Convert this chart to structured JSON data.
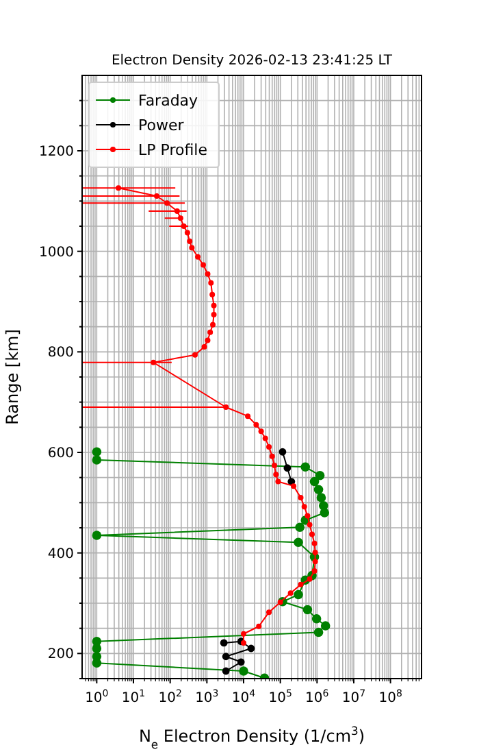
{
  "chart_data": {
    "type": "line",
    "title": "Electron Density 2026-02-13 23:41:25 LT",
    "xlabel": "N$_{e}$ Electron Density (1/cm$^{3}$)",
    "ylabel": "Range [km]",
    "log": "x",
    "grid": true,
    "legend": "top left",
    "marker": "circle",
    "line_style": "solid",
    "xlim": [
      0.4,
      700000000
    ],
    "ylim": [
      150,
      1350
    ],
    "xticks": [
      {
        "value": 1,
        "label": "10$^{0}$"
      },
      {
        "value": 10,
        "label": "10$^{1}$"
      },
      {
        "value": 100,
        "label": "10$^{2}$"
      },
      {
        "value": 1000,
        "label": "10$^{3}$"
      },
      {
        "value": 10000,
        "label": "10$^{4}$"
      },
      {
        "value": 100000,
        "label": "10$^{5}$"
      },
      {
        "value": 1000000,
        "label": "10$^{6}$"
      },
      {
        "value": 10000000,
        "label": "10$^{7}$"
      },
      {
        "value": 100000000,
        "label": "10$^{8}$"
      }
    ],
    "yticks": [
      {
        "value": 150,
        "label": null
      },
      200,
      {
        "value": 250,
        "label": null
      },
      {
        "value": 300,
        "label": null
      },
      {
        "value": 350,
        "label": null
      },
      400,
      {
        "value": 450,
        "label": null
      },
      {
        "value": 500,
        "label": null
      },
      {
        "value": 550,
        "label": null
      },
      600,
      {
        "value": 650,
        "label": null
      },
      {
        "value": 700,
        "label": null
      },
      {
        "value": 750,
        "label": null
      },
      800,
      {
        "value": 850,
        "label": null
      },
      {
        "value": 900,
        "label": null
      },
      {
        "value": 950,
        "label": null
      },
      1000,
      {
        "value": 1050,
        "label": null
      },
      {
        "value": 1100,
        "label": null
      },
      {
        "value": 1150,
        "label": null
      },
      1200,
      {
        "value": 1250,
        "label": null
      },
      {
        "value": 1300,
        "label": null
      }
    ],
    "series": [
      {
        "name": "Faraday",
        "color": "#008000",
        "x": [
          1,
          1,
          480000,
          1200000,
          850000,
          1100000,
          1300000,
          1500000,
          1600000,
          480000,
          340000,
          1,
          310000,
          850000,
          730000,
          480000,
          310000,
          115000,
          550000,
          970000,
          1700000,
          1100000,
          1,
          1,
          1,
          1,
          10000,
          37000
        ],
        "values": [
          601,
          585,
          571,
          554,
          542,
          526,
          510,
          494,
          480,
          465,
          451,
          435,
          421,
          392,
          355,
          346,
          317,
          303,
          287,
          269,
          255,
          242,
          224,
          210,
          194,
          181,
          165,
          151
        ]
      },
      {
        "name": "Power",
        "color": "#000000",
        "x": [
          115000,
          155000,
          200000,
          null,
          2900,
          8500,
          16000,
          3300,
          8500,
          3300
        ],
        "values": [
          601,
          569,
          542,
          null,
          221,
          224,
          210,
          194,
          183,
          165
        ]
      },
      {
        "name": "LP Profile",
        "color": "#ff0000",
        "x": [
          3.9,
          43,
          82,
          155,
          192,
          235,
          295,
          340,
          390,
          565,
          795,
          1050,
          1290,
          1400,
          1550,
          1550,
          1450,
          1230,
          1050,
          850,
          475,
          35,
          3300,
          13000,
          22000,
          30000,
          39000,
          49000,
          60000,
          69000,
          76000,
          87000,
          230000,
          360000,
          450000,
          550000,
          630000,
          730000,
          850000,
          890000,
          890000,
          850000,
          630000,
          360000,
          190000,
          100000,
          49000,
          26000,
          10000,
          10000
        ],
        "values": [
          1126,
          1110,
          1096,
          1080,
          1066,
          1050,
          1037,
          1020,
          1007,
          989,
          973,
          955,
          937,
          914,
          892,
          874,
          854,
          839,
          823,
          810,
          794,
          779,
          690,
          672,
          655,
          642,
          628,
          611,
          592,
          574,
          556,
          542,
          533,
          510,
          492,
          474,
          456,
          437,
          419,
          401,
          383,
          364,
          348,
          337,
          320,
          302,
          282,
          254,
          239,
          221
        ],
        "xerrors": [
          [
            0.4,
            138
          ],
          [
            0.4,
            180
          ],
          [
            0.4,
            250
          ],
          [
            26,
            280
          ],
          [
            71,
            220
          ],
          [
            94,
            310
          ],
          null,
          null,
          null,
          null,
          null,
          null,
          null,
          null,
          null,
          null,
          null,
          null,
          null,
          null,
          null,
          [
            0.4,
            110
          ],
          [
            0.4,
            3300
          ],
          null,
          null,
          null,
          null,
          null,
          null,
          null,
          null,
          null,
          null,
          null,
          null,
          null,
          null,
          null,
          null,
          null,
          null,
          null,
          null,
          null,
          null,
          null,
          null,
          null,
          null,
          null
        ]
      }
    ]
  }
}
